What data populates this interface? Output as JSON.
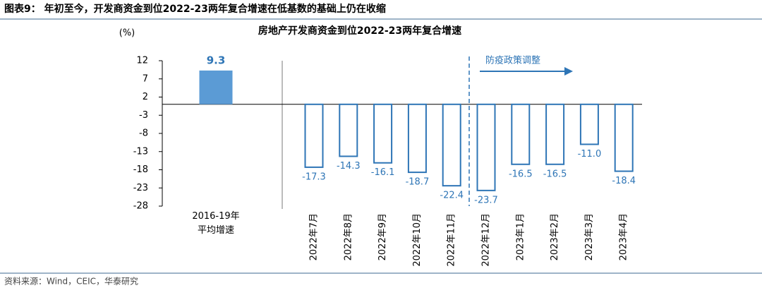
{
  "header": "图表9：  年初至今，开发商资金到位2022-23两年复合增速在低基数的基础上仍在收缩",
  "source": "资料来源：Wind，CEIC，华泰研究",
  "chart_data": {
    "type": "bar",
    "title": "房地产开发商资金到位2022-23两年复合增速",
    "y_label": "(%)",
    "categories": [
      "2016-19年\n平均增速",
      "2022年7月",
      "2022年8月",
      "2022年9月",
      "2022年10月",
      "2022年11月",
      "2022年12月",
      "2023年1月",
      "2023年2月",
      "2023年3月",
      "2023年4月"
    ],
    "values": [
      9.3,
      -17.3,
      -14.3,
      -16.1,
      -18.7,
      -22.4,
      -23.7,
      -16.5,
      -16.5,
      -11.0,
      -18.4
    ],
    "value_labels": [
      "9.3",
      "-17.3",
      "-14.3",
      "-16.1",
      "-18.7",
      "-22.4",
      "-23.7",
      "-16.5",
      "-16.5",
      "-11.0",
      "-18.4"
    ],
    "colors": [
      "#5b9bd5",
      "#2e75b6"
    ],
    "ylim": [
      -28,
      12
    ],
    "yticks": [
      12,
      7,
      2,
      -3,
      -8,
      -13,
      -18,
      -23,
      -28
    ],
    "annotation": "防疫政策调整",
    "grid": false
  }
}
